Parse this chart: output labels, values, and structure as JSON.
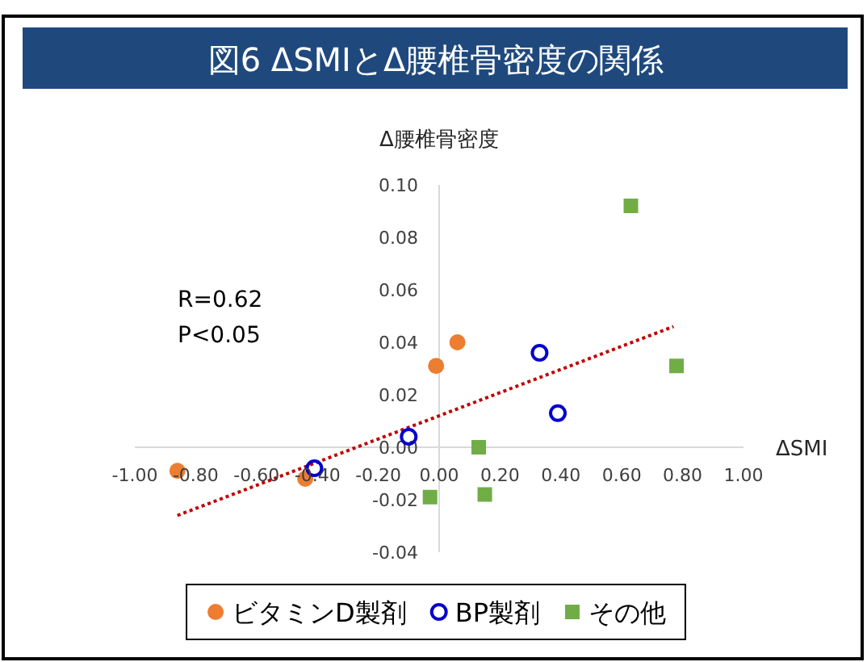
{
  "chart_data": {
    "type": "scatter",
    "title": "図6  ΔSMIとΔ腰椎骨密度の関係",
    "xlabel": "ΔSMI",
    "ylabel": "Δ腰椎骨密度",
    "annotations": [
      "R=0.62",
      "P<0.05"
    ],
    "xlim": [
      -1,
      1
    ],
    "ylim": [
      -0.04,
      0.1
    ],
    "xticks": [
      {
        "value": -1,
        "label": "-1.00"
      },
      {
        "value": -0.8,
        "label": "-0.80"
      },
      {
        "value": -0.6,
        "label": "-0.60"
      },
      {
        "value": -0.4,
        "label": "-0.40"
      },
      {
        "value": -0.2,
        "label": "-0.20"
      },
      {
        "value": 0,
        "label": "0.00"
      },
      {
        "value": 0.2,
        "label": "0.20"
      },
      {
        "value": 0.4,
        "label": "0.40"
      },
      {
        "value": 0.6,
        "label": "0.60"
      },
      {
        "value": 0.8,
        "label": "0.80"
      },
      {
        "value": 1,
        "label": "1.00"
      }
    ],
    "yticks": [
      {
        "value": -0.04,
        "label": "-0.04"
      },
      {
        "value": -0.02,
        "label": "-0.02"
      },
      {
        "value": 0,
        "label": "0.00"
      },
      {
        "value": 0.02,
        "label": "0.02"
      },
      {
        "value": 0.04,
        "label": "0.04"
      },
      {
        "value": 0.06,
        "label": "0.06"
      },
      {
        "value": 0.08,
        "label": "0.08"
      },
      {
        "value": 0.1,
        "label": "0.10"
      }
    ],
    "grid": false,
    "legend": "bottom",
    "series": [
      {
        "name": "ビタミンD製剤",
        "color": "#ed7d31",
        "marker": "circle",
        "x": [
          -0.86,
          -0.44,
          -0.01,
          0.06
        ],
        "values": [
          -0.009,
          -0.012,
          0.031,
          0.04
        ]
      },
      {
        "name": "BP製剤",
        "color": "#0000cc",
        "marker": "circle_open",
        "x": [
          -0.41,
          -0.1,
          0.33,
          0.39
        ],
        "values": [
          -0.008,
          0.004,
          0.036,
          0.013
        ]
      },
      {
        "name": "その他",
        "color": "#70ad47",
        "marker": "square",
        "x": [
          -0.03,
          0.13,
          0.15,
          0.63,
          0.78
        ],
        "values": [
          -0.019,
          0.0,
          -0.018,
          0.092,
          0.031
        ]
      },
      {
        "type": "line",
        "color": "#c00000",
        "line_style": "dotted",
        "marker": "none",
        "x": [
          -0.86,
          0.77
        ],
        "values": [
          -0.026,
          0.046
        ]
      }
    ]
  }
}
